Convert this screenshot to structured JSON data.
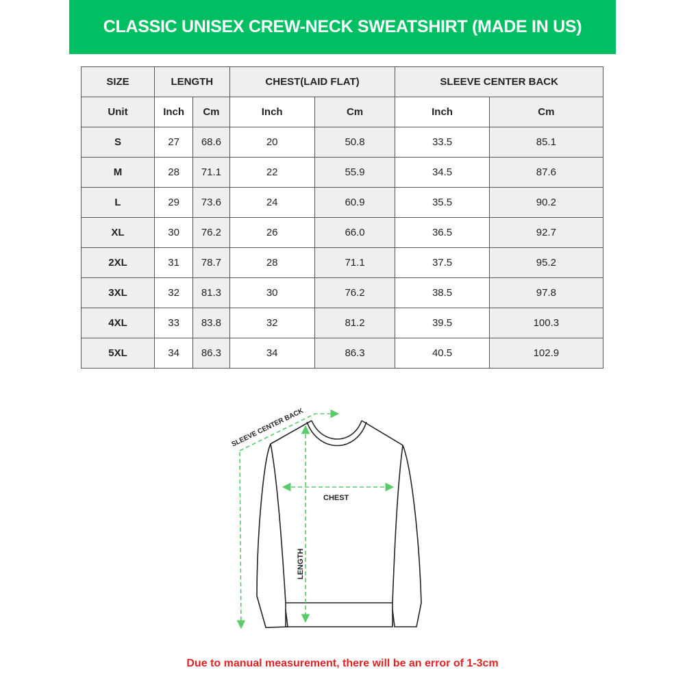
{
  "title": "CLASSIC UNISEX CREW-NECK SWEATSHIRT (MADE IN US)",
  "table": {
    "headers": [
      "SIZE",
      "LENGTH",
      "CHEST(LAID FLAT)",
      "SLEEVE CENTER BACK"
    ],
    "unit_row": [
      "Unit",
      "Inch",
      "Cm",
      "Inch",
      "Cm",
      "Inch",
      "Cm"
    ],
    "rows": [
      [
        "S",
        "27",
        "68.6",
        "20",
        "50.8",
        "33.5",
        "85.1"
      ],
      [
        "M",
        "28",
        "71.1",
        "22",
        "55.9",
        "34.5",
        "87.6"
      ],
      [
        "L",
        "29",
        "73.6",
        "24",
        "60.9",
        "35.5",
        "90.2"
      ],
      [
        "XL",
        "30",
        "76.2",
        "26",
        "66.0",
        "36.5",
        "92.7"
      ],
      [
        "2XL",
        "31",
        "78.7",
        "28",
        "71.1",
        "37.5",
        "95.2"
      ],
      [
        "3XL",
        "32",
        "81.3",
        "30",
        "76.2",
        "38.5",
        "97.8"
      ],
      [
        "4XL",
        "33",
        "83.8",
        "32",
        "81.2",
        "39.5",
        "100.3"
      ],
      [
        "5XL",
        "34",
        "86.3",
        "34",
        "86.3",
        "40.5",
        "102.9"
      ]
    ]
  },
  "diagram": {
    "sleeve_label": "SLEEVE CENTER BACK",
    "chest_label": "CHEST",
    "length_label": "LENGTH"
  },
  "note": "Due to manual measurement, there will be an error of 1-3cm",
  "colors": {
    "brand": "#00bf63",
    "note": "#e32222",
    "arrow": "#5cc96b"
  }
}
